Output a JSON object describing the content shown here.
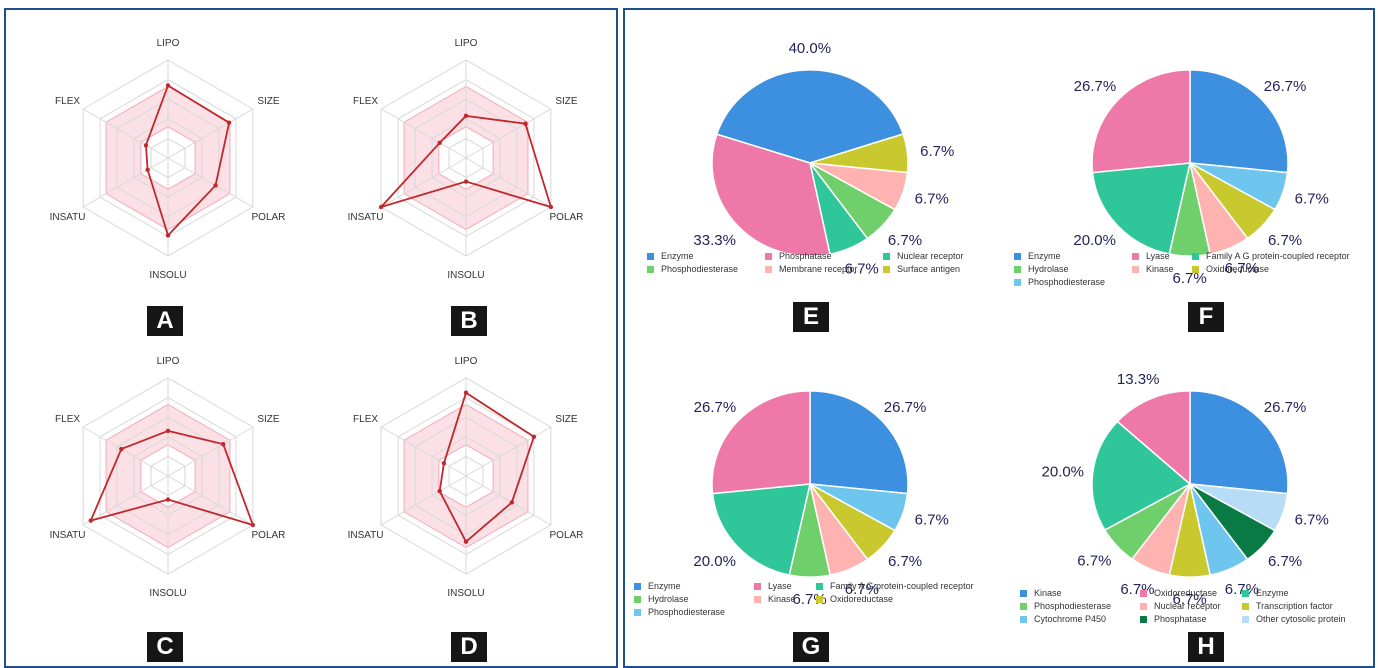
{
  "chart_data": [
    {
      "id": "A",
      "type": "radar",
      "axes": [
        "LIPO",
        "SIZE",
        "POLAR",
        "INSOLU",
        "INSATU",
        "FLEX"
      ],
      "values": [
        0.74,
        0.72,
        0.56,
        0.79,
        0.24,
        0.26
      ]
    },
    {
      "id": "B",
      "type": "radar",
      "axes": [
        "LIPO",
        "SIZE",
        "POLAR",
        "INSOLU",
        "INSATU",
        "FLEX"
      ],
      "values": [
        0.43,
        0.7,
        1.0,
        0.24,
        1.0,
        0.31
      ]
    },
    {
      "id": "C",
      "type": "radar",
      "axes": [
        "LIPO",
        "SIZE",
        "POLAR",
        "INSOLU",
        "INSATU",
        "FLEX"
      ],
      "values": [
        0.46,
        0.65,
        1.0,
        0.24,
        0.91,
        0.55
      ]
    },
    {
      "id": "D",
      "type": "radar",
      "axes": [
        "LIPO",
        "SIZE",
        "POLAR",
        "INSOLU",
        "INSATU",
        "FLEX"
      ],
      "values": [
        0.85,
        0.8,
        0.54,
        0.67,
        0.31,
        0.26
      ]
    },
    {
      "id": "E",
      "type": "pie",
      "slices": [
        {
          "name": "Enzyme",
          "value": 40.0,
          "label": "40.0%"
        },
        {
          "name": "Phosphatase",
          "value": 33.3,
          "label": "33.3%"
        },
        {
          "name": "Nuclear receptor",
          "value": 6.7,
          "label": "6.7%"
        },
        {
          "name": "Phosphodiesterase",
          "value": 6.7,
          "label": "6.7%"
        },
        {
          "name": "Membrane receptor",
          "value": 6.7,
          "label": "6.7%"
        },
        {
          "name": "Surface antigen",
          "value": 6.7,
          "label": "6.7%"
        }
      ],
      "legend": [
        "Enzyme",
        "Phosphatase",
        "Nuclear receptor",
        "Phosphodiesterase",
        "Membrane receptor",
        "Surface antigen"
      ]
    },
    {
      "id": "F",
      "type": "pie",
      "slices": [
        {
          "name": "Enzyme",
          "value": 26.7,
          "label": "26.7%"
        },
        {
          "name": "Lyase",
          "value": 26.7,
          "label": "26.7%"
        },
        {
          "name": "Family A G protein-coupled receptor",
          "value": 20.0,
          "label": "20.0%"
        },
        {
          "name": "Hydrolase",
          "value": 6.7,
          "label": "6.7%"
        },
        {
          "name": "Kinase",
          "value": 6.7,
          "label": "6.7%"
        },
        {
          "name": "Oxidoreductase",
          "value": 6.7,
          "label": "6.7%"
        },
        {
          "name": "Phosphodiesterase",
          "value": 6.7,
          "label": "6.7%"
        }
      ],
      "legend": [
        "Enzyme",
        "Lyase",
        "Family A G protein-coupled receptor",
        "Hydrolase",
        "Kinase",
        "Oxidoreductase",
        "Phosphodiesterase"
      ]
    },
    {
      "id": "G",
      "type": "pie",
      "slices": [
        {
          "name": "Enzyme",
          "value": 26.7,
          "label": "26.7%"
        },
        {
          "name": "Lyase",
          "value": 26.7,
          "label": "26.7%"
        },
        {
          "name": "Family A G protein-coupled receptor",
          "value": 20.0,
          "label": "20.0%"
        },
        {
          "name": "Hydrolase",
          "value": 6.7,
          "label": "6.7%"
        },
        {
          "name": "Kinase",
          "value": 6.7,
          "label": "6.7%"
        },
        {
          "name": "Oxidoreductase",
          "value": 6.7,
          "label": "6.7%"
        },
        {
          "name": "Phosphodiesterase",
          "value": 6.7,
          "label": "6.7%"
        }
      ],
      "legend": [
        "Enzyme",
        "Lyase",
        "Family A G protein-coupled receptor",
        "Hydrolase",
        "Kinase",
        "Oxidoreductase",
        "Phosphodiesterase"
      ]
    },
    {
      "id": "H",
      "type": "pie",
      "slices": [
        {
          "name": "Kinase",
          "value": 26.7,
          "label": "26.7%"
        },
        {
          "name": "Oxidoreductase",
          "value": 13.3,
          "label": "13.3%"
        },
        {
          "name": "Enzyme",
          "value": 20.0,
          "label": "20.0%"
        },
        {
          "name": "Phosphodiesterase",
          "value": 6.7,
          "label": "6.7%"
        },
        {
          "name": "Nuclear receptor",
          "value": 6.7,
          "label": "6.7%"
        },
        {
          "name": "Transcription factor",
          "value": 6.7,
          "label": "6.7%"
        },
        {
          "name": "Cytochrome P450",
          "value": 6.7,
          "label": "6.7%"
        },
        {
          "name": "Phosphatase",
          "value": 6.7,
          "label": "6.7%"
        },
        {
          "name": "Other cytosolic protein",
          "value": 6.7,
          "label": "6.7%"
        }
      ],
      "legend": [
        "Kinase",
        "Oxidoreductase",
        "Enzyme",
        "Phosphodiesterase",
        "Nuclear receptor",
        "Transcription factor",
        "Cytochrome P450",
        "Phosphatase",
        "Other cytosolic protein"
      ]
    }
  ],
  "colors": {
    "Enzyme": "#3d8fe0",
    "Kinase": "#3d8fe0",
    "Phosphatase": "#ee78a8",
    "Lyase": "#ee78a8",
    "Oxidoreductase": "#ee78a8",
    "Nuclear receptor": "#2fc79a",
    "Family A G protein-coupled receptor": "#2fc79a",
    "Phosphodiesterase": "#6fcf6a",
    "Hydrolase": "#6fcf6a",
    "Membrane receptor": "#ffb3b0",
    "Surface antigen": "#c9c92f",
    "Oxidoreductase_G": "#c9c92f",
    "Transcription factor": "#c9c92f",
    "Cytochrome P450": "#6ec6ef",
    "Other cytosolic protein": "#b6ddf5",
    "Phosphatase_H": "#0a7a45",
    "radar_line": "#c0282c",
    "radar_fill": "#fbe0e6",
    "frame": "#1f4f8c",
    "label": "#23235a"
  }
}
